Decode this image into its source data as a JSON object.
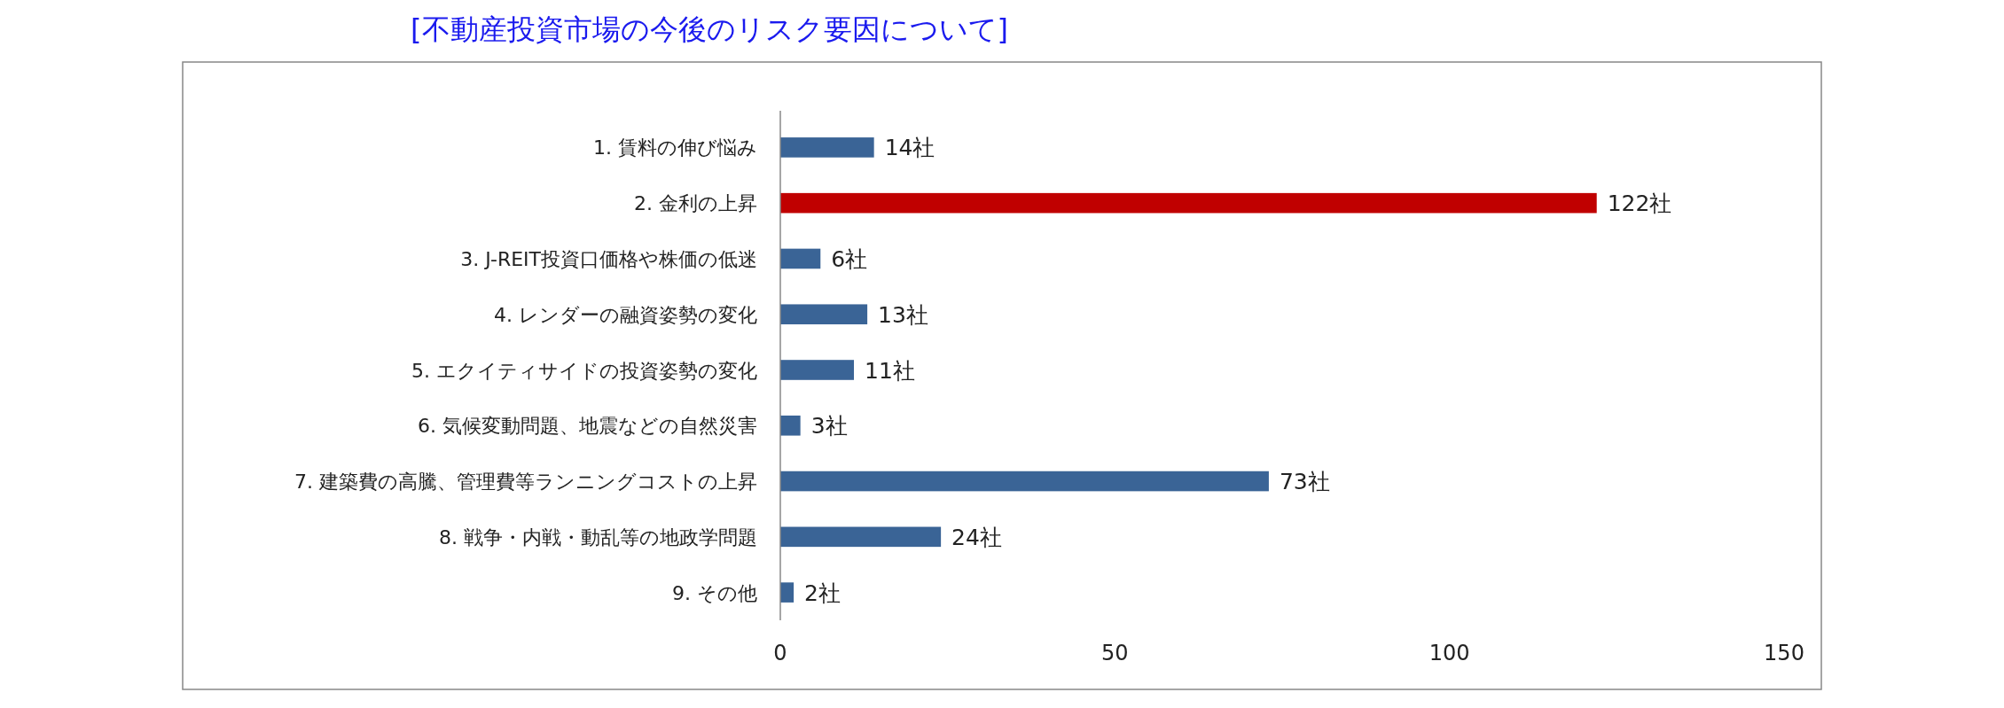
{
  "chart_data": {
    "type": "bar",
    "orientation": "horizontal",
    "title": "[不動産投資市場の今後のリスク要因について]",
    "categories": [
      "1.  賃料の伸び悩み",
      "2.  金利の上昇",
      "3.  J-REIT投資口価格や株価の低迷",
      "4.  レンダーの融資姿勢の変化",
      "5.  エクイティサイドの投資姿勢の変化",
      "6.  気候変動問題、地震などの自然災害",
      "7.  建築費の高騰、管理費等ランニングコストの上昇",
      "8.  戦争・内戦・動乱等の地政学問題",
      "9.  その他"
    ],
    "values": [
      14,
      122,
      6,
      13,
      11,
      3,
      73,
      24,
      2
    ],
    "value_labels": [
      "14社",
      "122社",
      "6社",
      "13社",
      "11社",
      "3社",
      "73社",
      "24社",
      "2社"
    ],
    "colors": [
      "#3a6496",
      "#c00000",
      "#3a6496",
      "#3a6496",
      "#3a6496",
      "#3a6496",
      "#3a6496",
      "#3a6496",
      "#3a6496"
    ],
    "xlim": [
      0,
      150
    ],
    "xticks": [
      0,
      50,
      100,
      150
    ],
    "grid": false
  }
}
